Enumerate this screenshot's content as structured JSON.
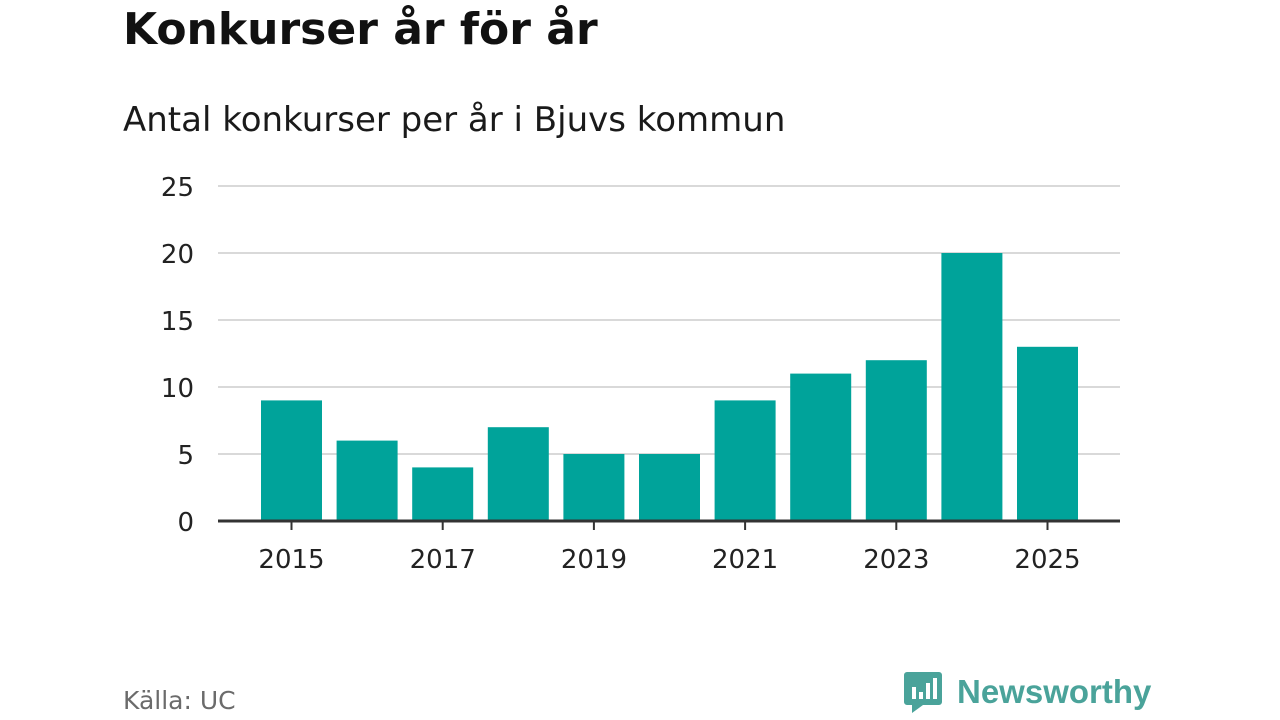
{
  "title": "Konkurser år för år",
  "subtitle": "Antal konkurser per år i Bjuvs kommun",
  "source": "Källa: UC",
  "brand": {
    "name": "Newsworthy",
    "icon": "newsworthy-logo-icon",
    "color": "#4aa39a"
  },
  "chart_data": {
    "type": "bar",
    "title": "Konkurser år för år",
    "subtitle": "Antal konkurser per år i Bjuvs kommun",
    "xlabel": "",
    "ylabel": "",
    "categories": [
      2015,
      2016,
      2017,
      2018,
      2019,
      2020,
      2021,
      2022,
      2023,
      2024,
      2025
    ],
    "values": [
      9,
      6,
      4,
      7,
      5,
      5,
      9,
      11,
      12,
      20,
      13
    ],
    "x_tick_labels": [
      "2015",
      "2017",
      "2019",
      "2021",
      "2023",
      "2025"
    ],
    "y_ticks": [
      0,
      5,
      10,
      15,
      20,
      25
    ],
    "ylim": [
      0,
      25
    ],
    "grid": true,
    "legend": "none",
    "bar_color": "#00a39a",
    "grid_color": "#d9d9d9",
    "axis_color": "#333333"
  }
}
